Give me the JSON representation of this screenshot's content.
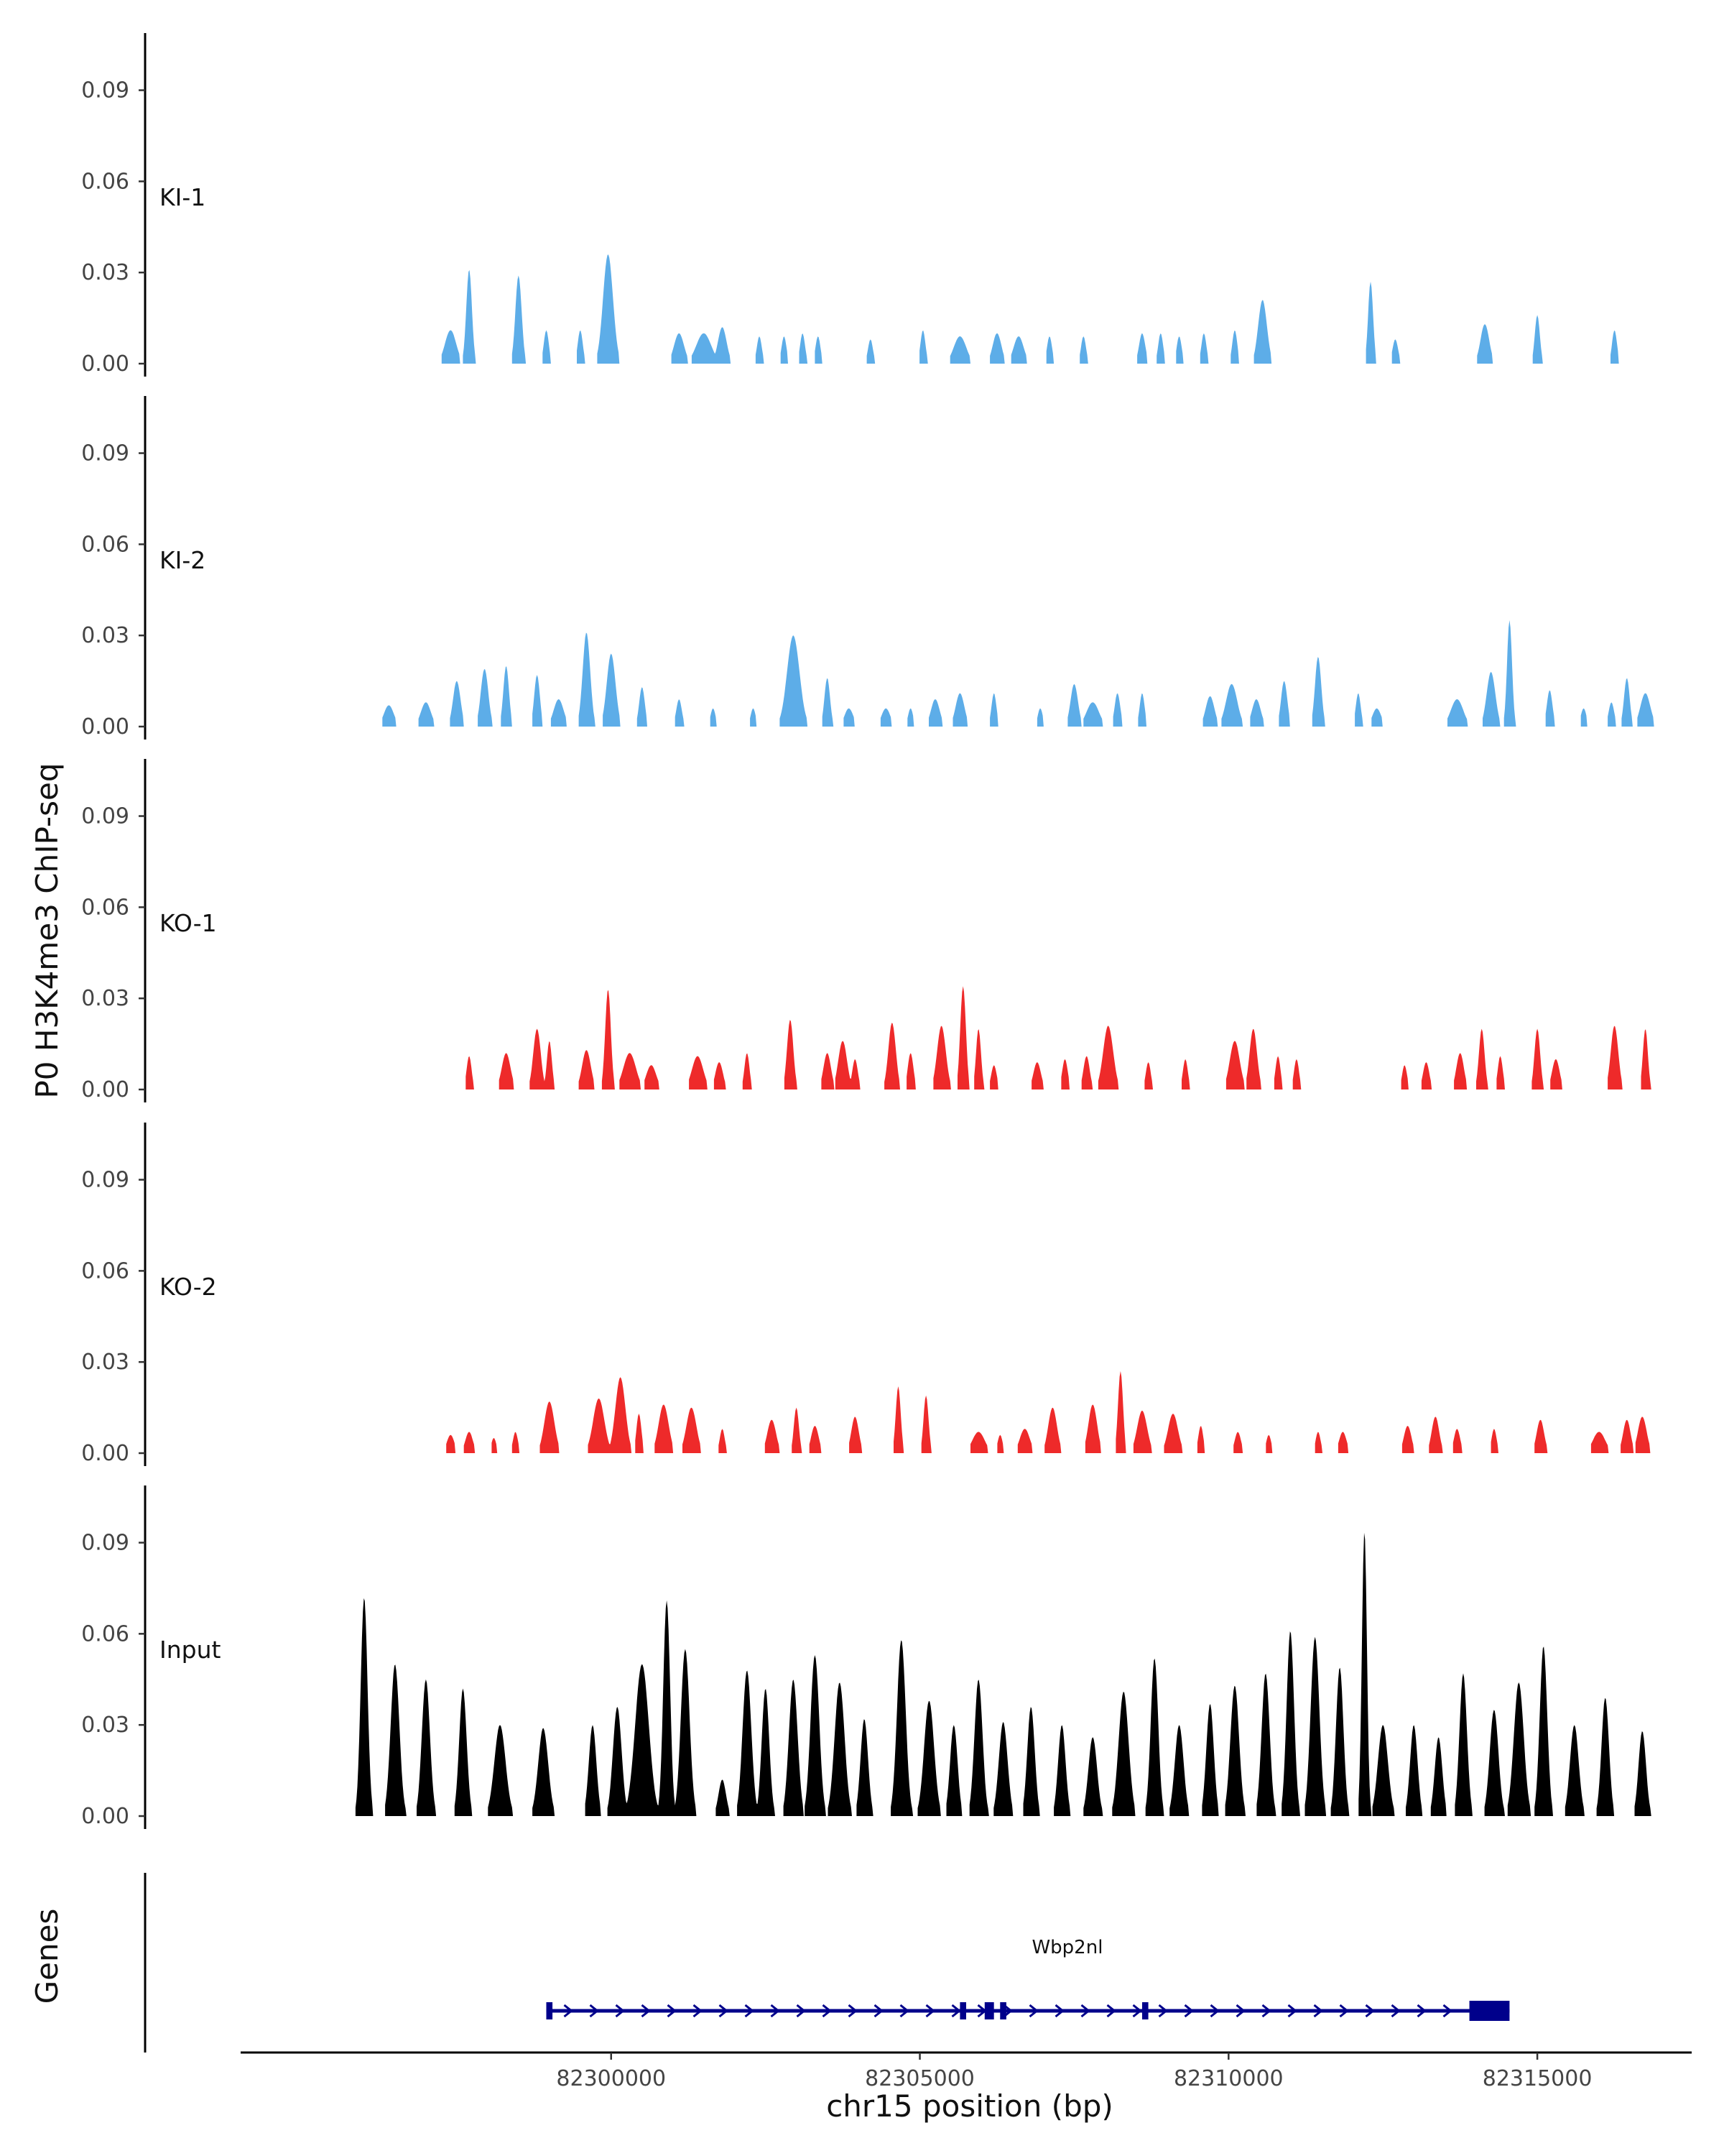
{
  "chart_data": {
    "type": "area",
    "y_axis_title": "P0 H3K4me3 ChIP-seq",
    "x_axis_title": "chr15 position (bp)",
    "genes_axis_title": "Genes",
    "xlim": [
      82294000,
      82317500
    ],
    "ylim": [
      0,
      0.11
    ],
    "yticks": [
      0.0,
      0.03,
      0.06,
      0.09
    ],
    "ytick_labels": [
      "0.00",
      "0.03",
      "0.06",
      "0.09"
    ],
    "xticks": [
      82300000,
      82305000,
      82310000,
      82315000
    ],
    "xtick_labels": [
      "82300000",
      "82305000",
      "82310000",
      "82315000"
    ],
    "colors": {
      "KI": "#5DADE8",
      "KO": "#EE2A2A",
      "Input": "#000000",
      "gene": "#00008B",
      "axis": "#000000"
    },
    "tracks": [
      {
        "name": "KI-1",
        "color": "#5DADE8",
        "peaks": [
          [
            82297400,
            0.011,
            90
          ],
          [
            82297700,
            0.031,
            45
          ],
          [
            82298500,
            0.029,
            50
          ],
          [
            82298950,
            0.011,
            40
          ],
          [
            82299500,
            0.011,
            40
          ],
          [
            82299950,
            0.036,
            80
          ],
          [
            82301100,
            0.01,
            80
          ],
          [
            82301500,
            0.01,
            120
          ],
          [
            82301800,
            0.012,
            70
          ],
          [
            82302400,
            0.009,
            40
          ],
          [
            82302800,
            0.009,
            40
          ],
          [
            82303100,
            0.01,
            40
          ],
          [
            82303350,
            0.009,
            40
          ],
          [
            82304200,
            0.008,
            40
          ],
          [
            82305050,
            0.011,
            40
          ],
          [
            82305650,
            0.009,
            100
          ],
          [
            82306250,
            0.01,
            70
          ],
          [
            82306600,
            0.009,
            80
          ],
          [
            82307100,
            0.009,
            40
          ],
          [
            82307650,
            0.009,
            40
          ],
          [
            82308600,
            0.01,
            50
          ],
          [
            82308900,
            0.01,
            40
          ],
          [
            82309200,
            0.009,
            40
          ],
          [
            82309600,
            0.01,
            40
          ],
          [
            82310100,
            0.011,
            40
          ],
          [
            82310550,
            0.021,
            70
          ],
          [
            82312300,
            0.027,
            40
          ],
          [
            82312700,
            0.008,
            45
          ],
          [
            82314150,
            0.013,
            70
          ],
          [
            82315000,
            0.016,
            40
          ],
          [
            82316250,
            0.011,
            40
          ]
        ]
      },
      {
        "name": "KI-2",
        "color": "#5DADE8",
        "peaks": [
          [
            82296400,
            0.007,
            80
          ],
          [
            82297000,
            0.008,
            80
          ],
          [
            82297500,
            0.015,
            60
          ],
          [
            82297950,
            0.019,
            60
          ],
          [
            82298300,
            0.02,
            45
          ],
          [
            82298800,
            0.017,
            45
          ],
          [
            82299150,
            0.009,
            80
          ],
          [
            82299600,
            0.031,
            60
          ],
          [
            82300000,
            0.024,
            70
          ],
          [
            82300500,
            0.013,
            45
          ],
          [
            82301100,
            0.009,
            45
          ],
          [
            82301650,
            0.006,
            40
          ],
          [
            82302300,
            0.006,
            40
          ],
          [
            82302950,
            0.03,
            100
          ],
          [
            82303500,
            0.016,
            45
          ],
          [
            82303850,
            0.006,
            70
          ],
          [
            82304450,
            0.006,
            70
          ],
          [
            82304850,
            0.006,
            40
          ],
          [
            82305250,
            0.009,
            70
          ],
          [
            82305650,
            0.011,
            70
          ],
          [
            82306200,
            0.011,
            40
          ],
          [
            82306950,
            0.006,
            40
          ],
          [
            82307500,
            0.014,
            60
          ],
          [
            82307800,
            0.008,
            100
          ],
          [
            82308200,
            0.011,
            45
          ],
          [
            82308600,
            0.011,
            40
          ],
          [
            82309700,
            0.01,
            70
          ],
          [
            82310050,
            0.014,
            90
          ],
          [
            82310450,
            0.009,
            70
          ],
          [
            82310900,
            0.015,
            50
          ],
          [
            82311450,
            0.023,
            50
          ],
          [
            82312100,
            0.011,
            40
          ],
          [
            82312400,
            0.006,
            70
          ],
          [
            82313700,
            0.009,
            100
          ],
          [
            82314250,
            0.018,
            70
          ],
          [
            82314550,
            0.035,
            40
          ],
          [
            82315200,
            0.012,
            45
          ],
          [
            82315750,
            0.006,
            45
          ],
          [
            82316200,
            0.008,
            45
          ],
          [
            82316450,
            0.016,
            45
          ],
          [
            82316750,
            0.011,
            80
          ]
        ]
      },
      {
        "name": "KO-1",
        "color": "#EE2A2A",
        "peaks": [
          [
            82297700,
            0.011,
            40
          ],
          [
            82298300,
            0.012,
            70
          ],
          [
            82298800,
            0.02,
            60
          ],
          [
            82299000,
            0.016,
            40
          ],
          [
            82299600,
            0.013,
            70
          ],
          [
            82299950,
            0.033,
            45
          ],
          [
            82300300,
            0.012,
            100
          ],
          [
            82300650,
            0.008,
            80
          ],
          [
            82301400,
            0.011,
            90
          ],
          [
            82301750,
            0.009,
            60
          ],
          [
            82302200,
            0.012,
            40
          ],
          [
            82302900,
            0.023,
            50
          ],
          [
            82303500,
            0.012,
            60
          ],
          [
            82303750,
            0.016,
            70
          ],
          [
            82303950,
            0.01,
            45
          ],
          [
            82304550,
            0.022,
            60
          ],
          [
            82304850,
            0.012,
            45
          ],
          [
            82305350,
            0.021,
            70
          ],
          [
            82305700,
            0.034,
            45
          ],
          [
            82305950,
            0.02,
            40
          ],
          [
            82306200,
            0.008,
            45
          ],
          [
            82306900,
            0.009,
            60
          ],
          [
            82307350,
            0.01,
            45
          ],
          [
            82307700,
            0.011,
            50
          ],
          [
            82308050,
            0.021,
            80
          ],
          [
            82308700,
            0.009,
            40
          ],
          [
            82309300,
            0.01,
            40
          ],
          [
            82310100,
            0.016,
            80
          ],
          [
            82310400,
            0.02,
            60
          ],
          [
            82310800,
            0.011,
            40
          ],
          [
            82311100,
            0.01,
            40
          ],
          [
            82312850,
            0.008,
            40
          ],
          [
            82313200,
            0.009,
            50
          ],
          [
            82313750,
            0.012,
            60
          ],
          [
            82314100,
            0.02,
            45
          ],
          [
            82314400,
            0.011,
            40
          ],
          [
            82315000,
            0.02,
            45
          ],
          [
            82315300,
            0.01,
            60
          ],
          [
            82316250,
            0.021,
            60
          ],
          [
            82316750,
            0.02,
            40
          ]
        ]
      },
      {
        "name": "KO-2",
        "color": "#EE2A2A",
        "peaks": [
          [
            82297400,
            0.006,
            60
          ],
          [
            82297700,
            0.007,
            60
          ],
          [
            82298100,
            0.005,
            40
          ],
          [
            82298450,
            0.007,
            40
          ],
          [
            82299000,
            0.017,
            80
          ],
          [
            82299800,
            0.018,
            90
          ],
          [
            82300150,
            0.025,
            80
          ],
          [
            82300450,
            0.013,
            40
          ],
          [
            82300850,
            0.016,
            80
          ],
          [
            82301300,
            0.015,
            80
          ],
          [
            82301800,
            0.008,
            40
          ],
          [
            82302600,
            0.011,
            70
          ],
          [
            82303000,
            0.015,
            40
          ],
          [
            82303300,
            0.009,
            60
          ],
          [
            82303950,
            0.012,
            60
          ],
          [
            82304650,
            0.022,
            40
          ],
          [
            82305100,
            0.019,
            40
          ],
          [
            82305950,
            0.007,
            100
          ],
          [
            82306300,
            0.006,
            40
          ],
          [
            82306700,
            0.008,
            80
          ],
          [
            82307150,
            0.015,
            70
          ],
          [
            82307800,
            0.016,
            70
          ],
          [
            82308250,
            0.027,
            40
          ],
          [
            82308600,
            0.014,
            80
          ],
          [
            82309100,
            0.013,
            80
          ],
          [
            82309550,
            0.009,
            40
          ],
          [
            82310150,
            0.007,
            50
          ],
          [
            82310650,
            0.006,
            40
          ],
          [
            82311450,
            0.007,
            40
          ],
          [
            82311850,
            0.007,
            60
          ],
          [
            82312900,
            0.009,
            60
          ],
          [
            82313350,
            0.012,
            60
          ],
          [
            82313700,
            0.008,
            50
          ],
          [
            82314300,
            0.008,
            40
          ],
          [
            82315050,
            0.011,
            60
          ],
          [
            82316000,
            0.007,
            100
          ],
          [
            82316450,
            0.011,
            60
          ],
          [
            82316700,
            0.012,
            70
          ]
        ]
      },
      {
        "name": "Input",
        "color": "#000000",
        "peaks": [
          [
            82296000,
            0.072,
            55
          ],
          [
            82296500,
            0.05,
            70
          ],
          [
            82297000,
            0.045,
            65
          ],
          [
            82297600,
            0.042,
            60
          ],
          [
            82298200,
            0.03,
            90
          ],
          [
            82298900,
            0.029,
            80
          ],
          [
            82299700,
            0.03,
            60
          ],
          [
            82300100,
            0.036,
            70
          ],
          [
            82300500,
            0.05,
            110
          ],
          [
            82300900,
            0.071,
            55
          ],
          [
            82301200,
            0.055,
            70
          ],
          [
            82301800,
            0.012,
            60
          ],
          [
            82302200,
            0.048,
            70
          ],
          [
            82302500,
            0.042,
            60
          ],
          [
            82302950,
            0.045,
            70
          ],
          [
            82303300,
            0.053,
            70
          ],
          [
            82303700,
            0.044,
            80
          ],
          [
            82304100,
            0.032,
            60
          ],
          [
            82304700,
            0.058,
            70
          ],
          [
            82305150,
            0.038,
            80
          ],
          [
            82305550,
            0.03,
            60
          ],
          [
            82305950,
            0.045,
            65
          ],
          [
            82306350,
            0.031,
            70
          ],
          [
            82306800,
            0.036,
            60
          ],
          [
            82307300,
            0.03,
            60
          ],
          [
            82307800,
            0.026,
            70
          ],
          [
            82308300,
            0.041,
            80
          ],
          [
            82308800,
            0.052,
            60
          ],
          [
            82309200,
            0.03,
            70
          ],
          [
            82309700,
            0.037,
            60
          ],
          [
            82310100,
            0.043,
            70
          ],
          [
            82310600,
            0.047,
            65
          ],
          [
            82311000,
            0.061,
            60
          ],
          [
            82311400,
            0.059,
            70
          ],
          [
            82311800,
            0.049,
            60
          ],
          [
            82312200,
            0.094,
            40
          ],
          [
            82312500,
            0.03,
            80
          ],
          [
            82313000,
            0.03,
            60
          ],
          [
            82313400,
            0.026,
            60
          ],
          [
            82313800,
            0.047,
            60
          ],
          [
            82314300,
            0.035,
            70
          ],
          [
            82314700,
            0.044,
            80
          ],
          [
            82315100,
            0.056,
            60
          ],
          [
            82315600,
            0.03,
            70
          ],
          [
            82316100,
            0.039,
            60
          ],
          [
            82316700,
            0.028,
            60
          ]
        ]
      }
    ],
    "gene": {
      "name": "Wbp2nl",
      "start": 82298950,
      "end": 82314550,
      "strand": "+",
      "exons": [
        [
          82298950,
          82299050
        ],
        [
          82305650,
          82305750
        ],
        [
          82306050,
          82306200
        ],
        [
          82306300,
          82306400
        ],
        [
          82308600,
          82308700
        ],
        [
          82313900,
          82314550
        ]
      ]
    }
  }
}
